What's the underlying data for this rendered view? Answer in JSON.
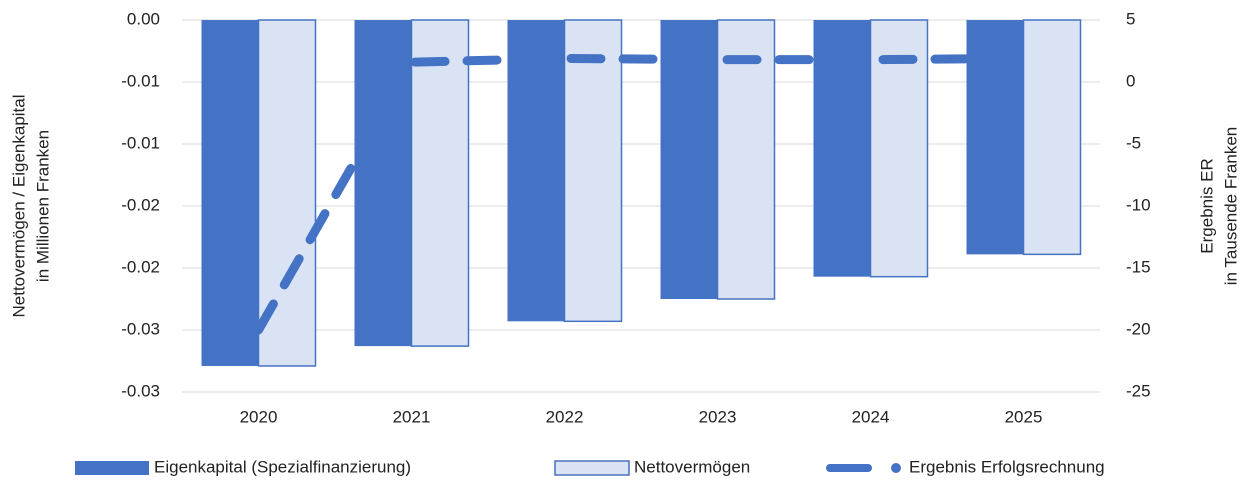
{
  "chart_data": {
    "type": "bar",
    "categories": [
      "2020",
      "2021",
      "2022",
      "2023",
      "2024",
      "2025"
    ],
    "y_label": [
      "Nettovermögen / Eigenkapital",
      "in Millionen Franken"
    ],
    "y2_label": [
      "Ergebnis ER",
      "in Tausende Franken"
    ],
    "ylim": [
      -0.03,
      0
    ],
    "yticks": [
      {
        "value": 0,
        "label": "0.00"
      },
      {
        "value": -0.005,
        "label": "-0.01"
      },
      {
        "value": -0.01,
        "label": "-0.01"
      },
      {
        "value": -0.015,
        "label": "-0.02"
      },
      {
        "value": -0.02,
        "label": "-0.02"
      },
      {
        "value": -0.025,
        "label": "-0.03"
      },
      {
        "value": -0.03,
        "label": "-0.03"
      }
    ],
    "y2lim": [
      -25,
      5
    ],
    "y2ticks": [
      5,
      0,
      -5,
      -10,
      -15,
      -20,
      -25
    ],
    "grid": true,
    "legend": "bottom",
    "series": [
      {
        "name": "Eigenkapital (Spezialfinanzierung)",
        "type": "bar",
        "color": "#4472c4",
        "values": [
          -0.0279,
          -0.0263,
          -0.0243,
          -0.0225,
          -0.0207,
          -0.0189
        ]
      },
      {
        "name": "Nettovermögen",
        "type": "bar",
        "color": "#dae3f3",
        "edge": "#4472c4",
        "values": [
          -0.0279,
          -0.0263,
          -0.0243,
          -0.0225,
          -0.0207,
          -0.0189
        ]
      },
      {
        "name": "Ergebnis Erfolgsrechnung",
        "type": "line",
        "axis": "y2",
        "color": "#4472c4",
        "values": [
          -20,
          1.6,
          1.9,
          1.8,
          1.8,
          1.9
        ]
      }
    ]
  }
}
